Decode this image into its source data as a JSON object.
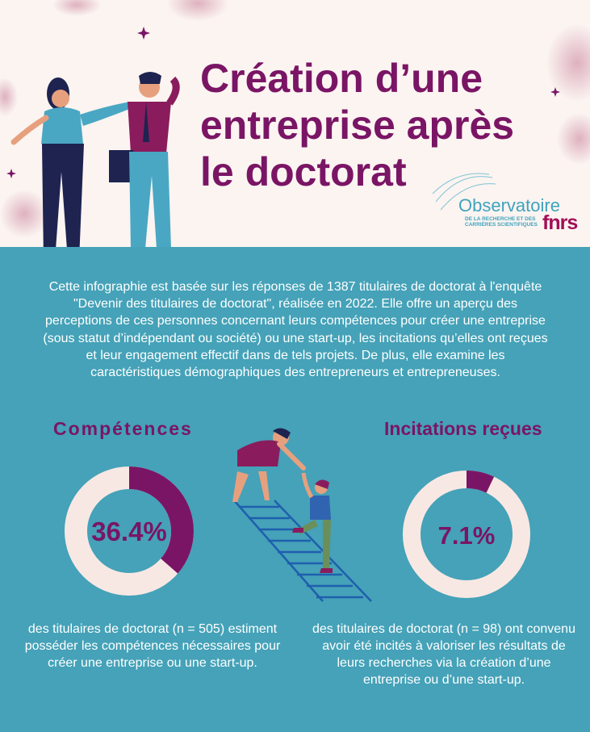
{
  "title": "Création d’une entreprise après le doctorat",
  "logo": {
    "name": "Observatoire",
    "subtitle": "DE LA RECHERCHE ET DES CARRIÈRES SCIENTIFIQUES",
    "brand": "fnrs"
  },
  "intro": "Cette infographie est basée sur les réponses de 1387 titulaires de doctorat à l'enquête \"Devenir des titulaires de doctorat\", réalisée en 2022. Elle offre un aperçu des perceptions de ces personnes concernant leurs compétences pour créer une entreprise (sous statut d’indépendant ou société) ou une start-up, les incitations qu’elles ont reçues et leur engagement effectif dans de tels projets. De plus, elle examine les caractéristiques démographiques des entrepreneurs et entrepreneuses.",
  "competences": {
    "title": "Compétences",
    "percent_label": "36.4%",
    "value": 36.4,
    "caption": "des titulaires de doctorat (n = 505) estiment posséder les compétences nécessaires pour créer une entreprise ou une start-up."
  },
  "incitations": {
    "title": "Incitations reçues",
    "percent_label": "7.1%",
    "value": 7.1,
    "caption": "des titulaires de doctorat (n = 98) ont convenu avoir été incités à valoriser les résultats de leurs recherches via la création d’une entreprise ou d’une start-up."
  },
  "colors": {
    "primary": "#7a1565",
    "teal": "#45a2b8",
    "ring": "#f8e8e4",
    "header_bg": "#fbf4f1"
  }
}
